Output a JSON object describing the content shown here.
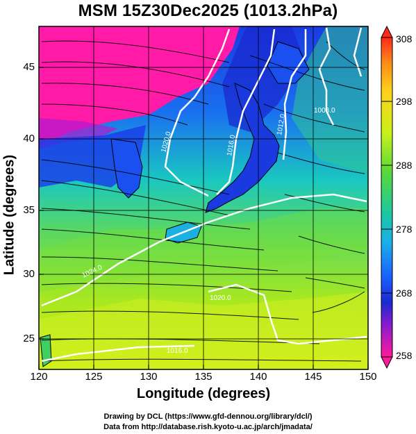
{
  "title": "MSM 15Z30Dec2025 (1013.2hPa)",
  "axes": {
    "xlabel": "Longitude (degrees)",
    "ylabel": "Latitude  (degrees)",
    "x_ticks": [
      "120",
      "125",
      "130",
      "135",
      "140",
      "145",
      "150"
    ],
    "y_ticks": [
      "45",
      "40",
      "35",
      "30",
      "25"
    ],
    "xlim": [
      120,
      150
    ],
    "ylim": [
      22.4,
      47.6
    ]
  },
  "colorbar": {
    "ticks": [
      "308",
      "298",
      "288",
      "278",
      "268",
      "258"
    ],
    "range": [
      258,
      308
    ],
    "colors_top_to_bottom": [
      "#ff2a1a",
      "#ff8c1a",
      "#ffd21a",
      "#d8f01a",
      "#7ee01a",
      "#1ad05a",
      "#1ac8a0",
      "#1ab8e0",
      "#1a70ff",
      "#1a2ad8",
      "#8a1ad0",
      "#e01ab0",
      "#ff1a9a"
    ]
  },
  "contours": {
    "labels": [
      "1020.0",
      "1016.0",
      "1012.0",
      "1008.0",
      "1024.0",
      "1020.0",
      "1016.0"
    ],
    "color": "#ffffff"
  },
  "chart_data": {
    "type": "heatmap",
    "variable_range": [
      258,
      308
    ],
    "x_range": [
      120,
      150
    ],
    "y_range": [
      22.4,
      47.6
    ],
    "contour_levels": [
      1008.0,
      1012.0,
      1016.0,
      1020.0,
      1024.0
    ]
  },
  "credits": {
    "line1": "Drawing by DCL (https://www.gfd-dennou.org/library/dcl/)",
    "line2": "Data from http://database.rish.kyoto-u.ac.jp/arch/jmadata/"
  }
}
